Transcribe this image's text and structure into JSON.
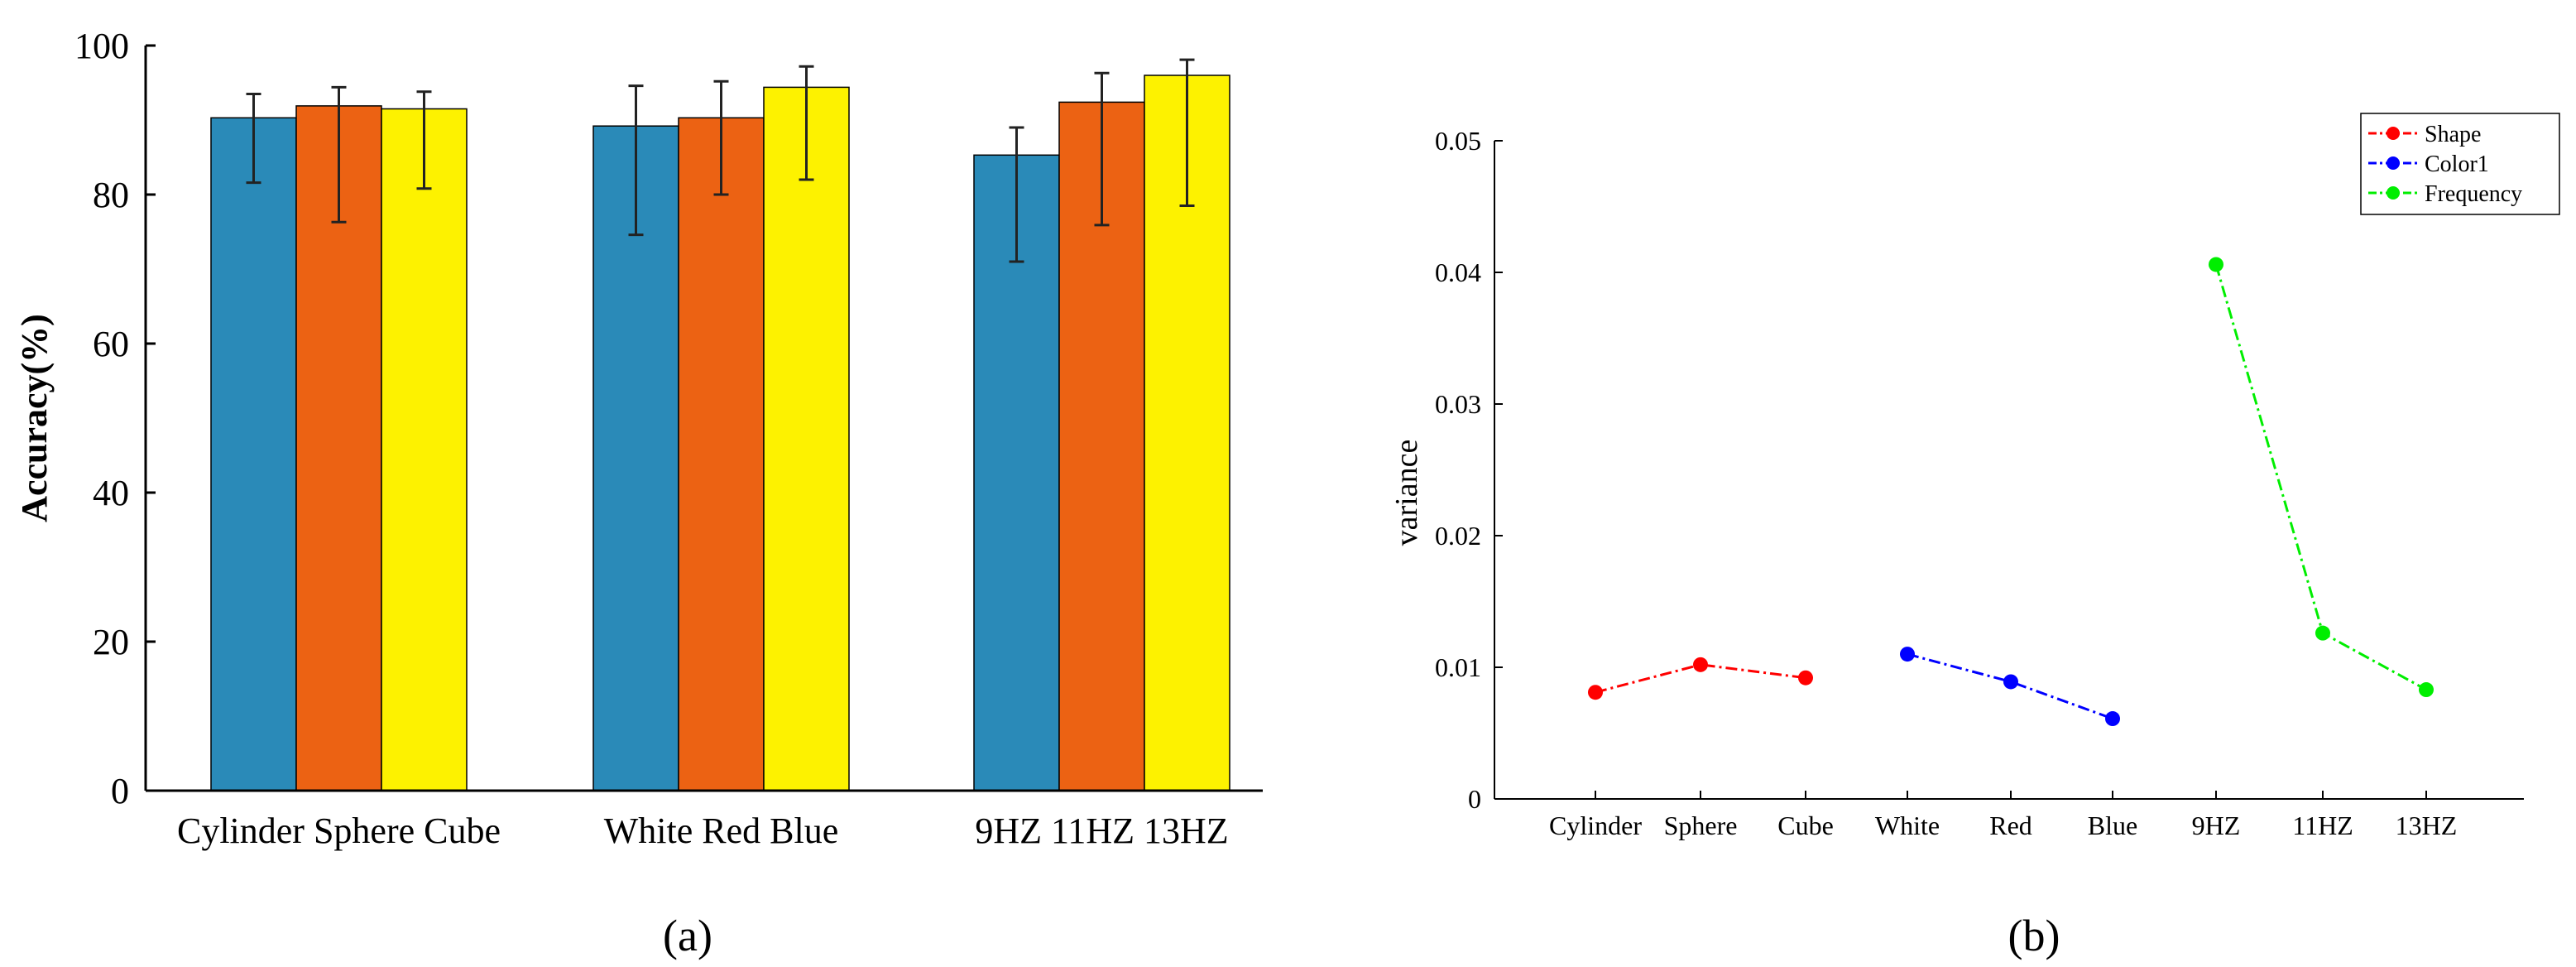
{
  "chart_data": [
    {
      "type": "bar",
      "panel": "(a)",
      "ylabel": "Accuracy(%)",
      "xlabel": "",
      "ylim": [
        0,
        100
      ],
      "yticks": [
        0,
        20,
        40,
        60,
        80,
        100
      ],
      "categories": [
        "Cylinder",
        "Sphere",
        "Cube",
        "White",
        "Red",
        "Blue",
        "9HZ",
        "11HZ",
        "13HZ"
      ],
      "values": [
        90.3,
        91.9,
        91.5,
        89.2,
        90.3,
        94.4,
        85.3,
        92.4,
        96.0
      ],
      "err_low": [
        81.6,
        76.3,
        80.8,
        74.6,
        80.0,
        82.0,
        71.0,
        75.9,
        78.5
      ],
      "err_high": [
        93.5,
        94.4,
        93.8,
        94.6,
        95.2,
        97.2,
        89.0,
        96.3,
        98.1
      ],
      "colors": [
        "#2a8ab8",
        "#ec6213",
        "#fdf200"
      ],
      "groups": [
        {
          "label": "Cylinder Sphere Cube"
        },
        {
          "label": "White Red Blue"
        },
        {
          "label": "9HZ 11HZ 13HZ"
        }
      ],
      "grid": false
    },
    {
      "type": "line",
      "panel": "(b)",
      "ylabel": "variance",
      "xlabel": "",
      "ylim": [
        0,
        0.05
      ],
      "yticks": [
        "0",
        "0.01",
        "0.02",
        "0.03",
        "0.04",
        "0.05"
      ],
      "categories": [
        "Cylinder",
        "Sphere",
        "Cube",
        "White",
        "Red",
        "Blue",
        "9HZ",
        "11HZ",
        "13HZ"
      ],
      "series": [
        {
          "name": "Shape",
          "color": "#ff0000",
          "x": [
            0,
            1,
            2
          ],
          "values": [
            0.0081,
            0.0102,
            0.0092
          ]
        },
        {
          "name": "Color1",
          "color": "#0000ff",
          "x": [
            3,
            4,
            5
          ],
          "values": [
            0.011,
            0.0089,
            0.0061
          ]
        },
        {
          "name": "Frequency",
          "color": "#00ee00",
          "x": [
            6,
            7,
            8
          ],
          "values": [
            0.0406,
            0.0126,
            0.0083
          ]
        }
      ],
      "legend": "top-right",
      "grid": false
    }
  ]
}
